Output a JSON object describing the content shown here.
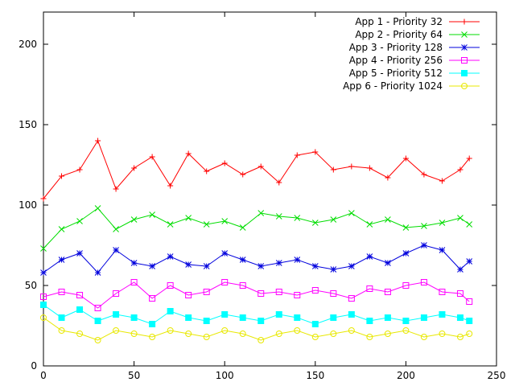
{
  "chart_data": {
    "type": "line",
    "title": "",
    "xlabel": "",
    "ylabel": "",
    "xlim": [
      0,
      250
    ],
    "ylim": [
      0,
      220
    ],
    "x_ticks": [
      0,
      50,
      100,
      150,
      200,
      250
    ],
    "y_ticks": [
      0,
      50,
      100,
      150,
      200
    ],
    "grid": false,
    "legend_position": "top-right",
    "series": [
      {
        "name": "App 1 - Priority 32",
        "color": "#ff0000",
        "marker": "plus",
        "x": [
          0,
          10,
          20,
          30,
          40,
          50,
          60,
          70,
          80,
          90,
          100,
          110,
          120,
          130,
          140,
          150,
          160,
          170,
          180,
          190,
          200,
          210,
          220,
          230,
          235
        ],
        "values": [
          104,
          118,
          122,
          140,
          110,
          123,
          130,
          112,
          132,
          121,
          126,
          119,
          124,
          114,
          131,
          133,
          122,
          124,
          123,
          117,
          129,
          119,
          115,
          122,
          129
        ]
      },
      {
        "name": "App 2 - Priority 64",
        "color": "#00dd00",
        "marker": "cross",
        "x": [
          0,
          10,
          20,
          30,
          40,
          50,
          60,
          70,
          80,
          90,
          100,
          110,
          120,
          130,
          140,
          150,
          160,
          170,
          180,
          190,
          200,
          210,
          220,
          230,
          235
        ],
        "values": [
          73,
          85,
          90,
          98,
          85,
          91,
          94,
          88,
          92,
          88,
          90,
          86,
          95,
          93,
          92,
          89,
          91,
          95,
          88,
          91,
          86,
          87,
          89,
          92,
          88
        ]
      },
      {
        "name": "App 3 - Priority 128",
        "color": "#0000dd",
        "marker": "star",
        "x": [
          0,
          10,
          20,
          30,
          40,
          50,
          60,
          70,
          80,
          90,
          100,
          110,
          120,
          130,
          140,
          150,
          160,
          170,
          180,
          190,
          200,
          210,
          220,
          230,
          235
        ],
        "values": [
          58,
          66,
          70,
          58,
          72,
          64,
          62,
          68,
          63,
          62,
          70,
          66,
          62,
          64,
          66,
          62,
          60,
          62,
          68,
          64,
          70,
          75,
          72,
          60,
          65
        ]
      },
      {
        "name": "App 4 - Priority 256",
        "color": "#ff00ff",
        "marker": "square-open",
        "x": [
          0,
          10,
          20,
          30,
          40,
          50,
          60,
          70,
          80,
          90,
          100,
          110,
          120,
          130,
          140,
          150,
          160,
          170,
          180,
          190,
          200,
          210,
          220,
          230,
          235
        ],
        "values": [
          43,
          46,
          44,
          36,
          45,
          52,
          42,
          50,
          44,
          46,
          52,
          50,
          45,
          46,
          44,
          47,
          45,
          42,
          48,
          46,
          50,
          52,
          46,
          45,
          40
        ]
      },
      {
        "name": "App 5 - Priority 512",
        "color": "#00ffff",
        "marker": "square-filled",
        "x": [
          0,
          10,
          20,
          30,
          40,
          50,
          60,
          70,
          80,
          90,
          100,
          110,
          120,
          130,
          140,
          150,
          160,
          170,
          180,
          190,
          200,
          210,
          220,
          230,
          235
        ],
        "values": [
          38,
          30,
          35,
          28,
          32,
          30,
          26,
          34,
          30,
          28,
          32,
          30,
          28,
          32,
          30,
          26,
          30,
          32,
          28,
          30,
          28,
          30,
          32,
          30,
          28
        ]
      },
      {
        "name": "App 6 - Priority 1024",
        "color": "#e8e800",
        "marker": "circle-open",
        "x": [
          0,
          10,
          20,
          30,
          40,
          50,
          60,
          70,
          80,
          90,
          100,
          110,
          120,
          130,
          140,
          150,
          160,
          170,
          180,
          190,
          200,
          210,
          220,
          230,
          235
        ],
        "values": [
          30,
          22,
          20,
          16,
          22,
          20,
          18,
          22,
          20,
          18,
          22,
          20,
          16,
          20,
          22,
          18,
          20,
          22,
          18,
          20,
          22,
          18,
          20,
          18,
          20
        ]
      }
    ]
  }
}
